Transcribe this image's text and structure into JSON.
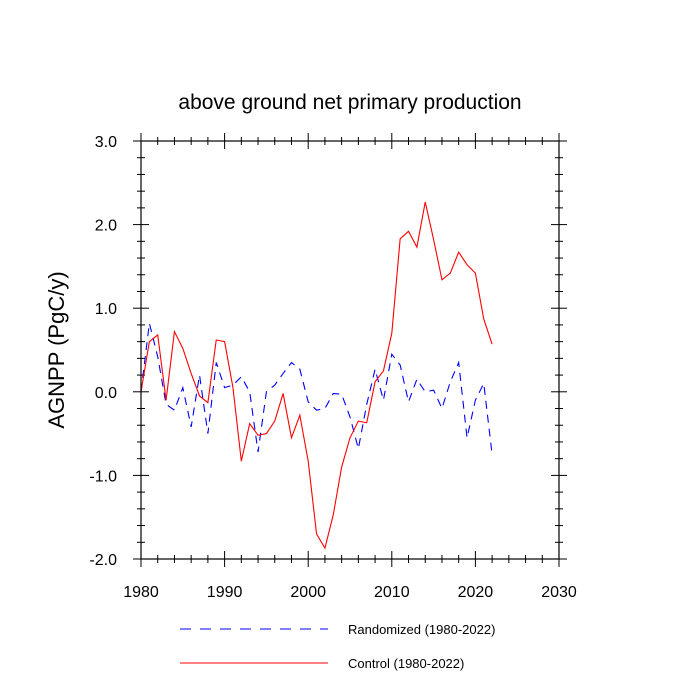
{
  "chart_data": {
    "type": "line",
    "title": "above ground net primary production",
    "xlabel": "",
    "ylabel": "AGNPP  (PgC/y)",
    "xlim": [
      1980,
      2030
    ],
    "ylim": [
      -2.0,
      3.0
    ],
    "xticks": [
      1980,
      1990,
      2000,
      2010,
      2020,
      2030
    ],
    "xtick_labels": [
      "1980",
      "1990",
      "2000",
      "2010",
      "2020",
      "2030"
    ],
    "yticks": [
      -2.0,
      -1.0,
      0.0,
      1.0,
      2.0,
      3.0
    ],
    "ytick_labels": [
      "-2.0",
      "-1.0",
      "0.0",
      "1.0",
      "2.0",
      "3.0"
    ],
    "grid": false,
    "legend_position": "bottom",
    "x": [
      1980,
      1981,
      1982,
      1983,
      1984,
      1985,
      1986,
      1987,
      1988,
      1989,
      1990,
      1991,
      1992,
      1993,
      1994,
      1995,
      1996,
      1997,
      1998,
      1999,
      2000,
      2001,
      2002,
      2003,
      2004,
      2005,
      2006,
      2007,
      2008,
      2009,
      2010,
      2011,
      2012,
      2013,
      2014,
      2015,
      2016,
      2017,
      2018,
      2019,
      2020,
      2021,
      2022
    ],
    "series": [
      {
        "name": "Randomized (1980-2022)",
        "color": "#0000ff",
        "style": "dashed",
        "values": [
          0.0,
          0.82,
          0.42,
          -0.15,
          -0.22,
          0.05,
          -0.42,
          0.2,
          -0.5,
          0.35,
          0.05,
          0.08,
          0.18,
          0.0,
          -0.72,
          0.0,
          0.08,
          0.22,
          0.35,
          0.27,
          -0.12,
          -0.22,
          -0.2,
          -0.02,
          -0.03,
          -0.3,
          -0.68,
          -0.15,
          0.27,
          -0.1,
          0.45,
          0.32,
          -0.12,
          0.15,
          0.0,
          0.02,
          -0.2,
          0.12,
          0.35,
          -0.55,
          -0.1,
          0.1,
          -0.75
        ]
      },
      {
        "name": "Control (1980-2022)",
        "color": "#ff0000",
        "style": "solid",
        "values": [
          0.0,
          0.6,
          0.68,
          -0.1,
          0.72,
          0.52,
          0.22,
          -0.05,
          -0.13,
          0.62,
          0.6,
          0.05,
          -0.83,
          -0.38,
          -0.52,
          -0.5,
          -0.35,
          -0.02,
          -0.55,
          -0.28,
          -0.83,
          -1.7,
          -1.87,
          -1.47,
          -0.9,
          -0.55,
          -0.35,
          -0.37,
          0.12,
          0.25,
          0.7,
          1.83,
          1.92,
          1.73,
          2.27,
          1.82,
          1.34,
          1.42,
          1.67,
          1.52,
          1.42,
          0.87,
          0.57
        ]
      }
    ]
  }
}
